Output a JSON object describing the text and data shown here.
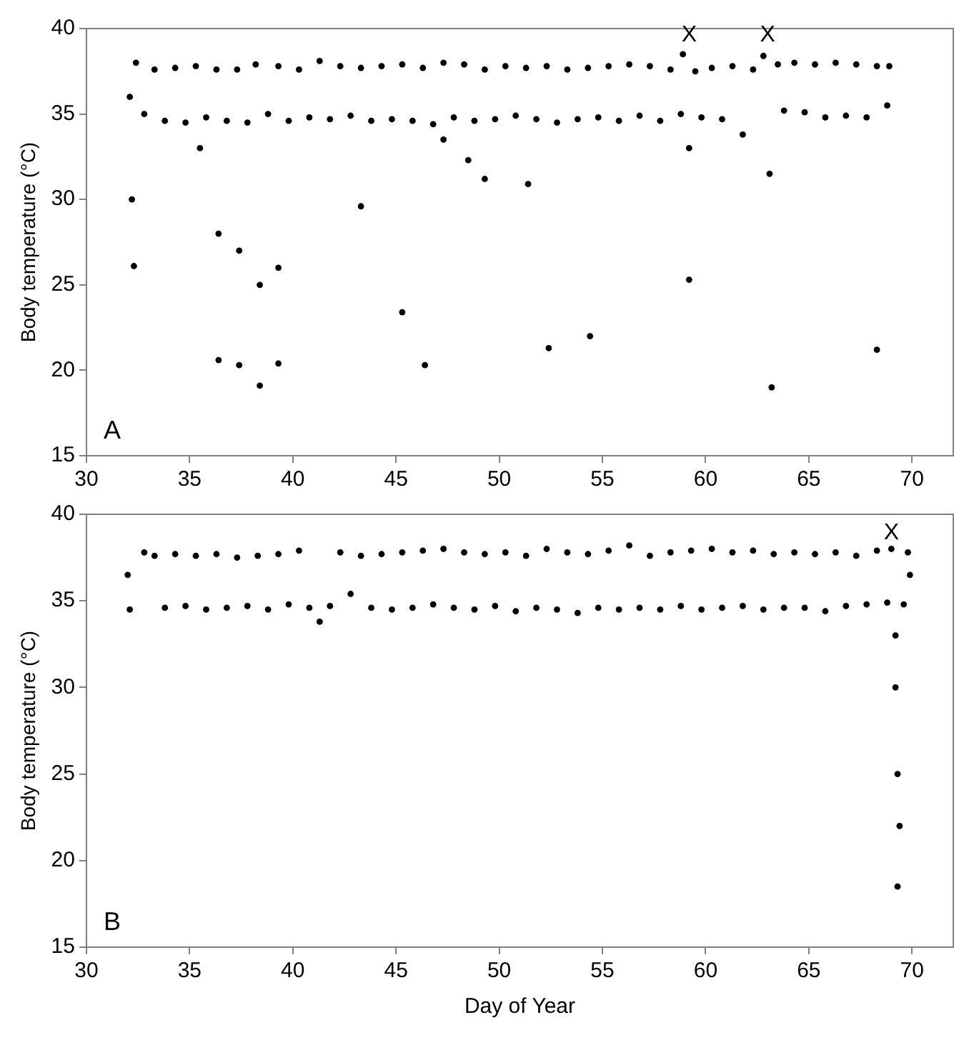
{
  "chart_data": [
    {
      "type": "scatter",
      "ylabel": "Body temperature (°C)",
      "marker": "circle",
      "grid": false,
      "legend": false,
      "xlim": [
        30,
        72
      ],
      "xticks": [
        30,
        35,
        40,
        45,
        50,
        55,
        60,
        65,
        70
      ],
      "ylim": [
        15,
        40
      ],
      "yticks": [
        15,
        20,
        25,
        30,
        35,
        40
      ],
      "annotations": [
        "A",
        {
          "text": "X",
          "x": 59.2,
          "y": 38.7
        },
        {
          "text": "X",
          "x": 63.0,
          "y": 38.7
        }
      ],
      "series": [
        {
          "color": "#000000",
          "x": [
            32.1,
            32.2,
            32.3,
            32.4,
            32.8,
            33.3,
            33.8,
            34.3,
            34.8,
            35.3,
            35.5,
            35.8,
            36.3,
            36.4,
            36.4,
            36.8,
            37.3,
            37.4,
            37.4,
            37.8,
            38.2,
            38.4,
            38.4,
            38.8,
            39.3,
            39.3,
            39.3,
            39.8,
            40.3,
            40.8,
            41.3,
            41.8,
            42.3,
            42.8,
            43.3,
            43.3,
            43.8,
            44.3,
            44.8,
            45.3,
            45.3,
            45.8,
            46.3,
            46.4,
            46.8,
            47.3,
            47.3,
            47.8,
            48.3,
            48.5,
            48.8,
            49.3,
            49.3,
            49.8,
            50.3,
            50.8,
            51.3,
            51.4,
            51.8,
            52.3,
            52.4,
            52.8,
            53.3,
            53.8,
            54.3,
            54.4,
            54.8,
            55.3,
            55.8,
            56.3,
            56.8,
            57.3,
            57.8,
            58.3,
            58.8,
            58.9,
            59.2,
            59.2,
            59.5,
            59.8,
            60.3,
            60.8,
            61.3,
            61.8,
            62.3,
            62.8,
            63.1,
            63.2,
            63.5,
            63.8,
            64.3,
            64.8,
            65.3,
            65.8,
            66.3,
            66.8,
            67.3,
            67.8,
            68.3,
            68.3,
            68.8,
            68.9
          ],
          "values": [
            36,
            30,
            26.1,
            38.0,
            35.0,
            37.6,
            34.6,
            37.7,
            34.5,
            37.8,
            33.0,
            34.8,
            37.6,
            28,
            20.6,
            34.6,
            37.6,
            27,
            20.3,
            34.5,
            37.9,
            25,
            19.1,
            35,
            37.8,
            26,
            20.4,
            34.6,
            37.6,
            34.8,
            38.1,
            34.7,
            37.8,
            34.9,
            37.7,
            29.6,
            34.6,
            37.8,
            34.7,
            37.9,
            23.4,
            34.6,
            37.7,
            20.3,
            34.4,
            38.0,
            33.5,
            34.8,
            37.9,
            32.3,
            34.6,
            37.6,
            31.2,
            34.7,
            37.8,
            34.9,
            37.7,
            30.9,
            34.7,
            37.8,
            21.3,
            34.5,
            37.6,
            34.7,
            37.7,
            22.0,
            34.8,
            37.8,
            34.6,
            37.9,
            34.9,
            37.8,
            34.6,
            37.6,
            35.0,
            38.5,
            33,
            25.3,
            37.5,
            34.8,
            37.7,
            34.7,
            37.8,
            33.8,
            37.6,
            38.4,
            31.5,
            19.0,
            37.9,
            35.2,
            38.0,
            35.1,
            37.9,
            34.8,
            38.0,
            34.9,
            37.9,
            34.8,
            37.8,
            21.2,
            35.5,
            37.8
          ]
        }
      ]
    },
    {
      "type": "scatter",
      "xlabel": "Day of Year",
      "ylabel": "Body temperature (°C)",
      "marker": "circle",
      "grid": false,
      "legend": false,
      "xlim": [
        30,
        72
      ],
      "xticks": [
        30,
        35,
        40,
        45,
        50,
        55,
        60,
        65,
        70
      ],
      "ylim": [
        15,
        40
      ],
      "yticks": [
        15,
        20,
        25,
        30,
        35,
        40
      ],
      "annotations": [
        "B",
        {
          "text": "X",
          "x": 69.0,
          "y": 38.0
        }
      ],
      "series": [
        {
          "color": "#000000",
          "x": [
            32.0,
            32.1,
            32.8,
            33.3,
            33.8,
            34.3,
            34.8,
            35.3,
            35.8,
            36.3,
            36.8,
            37.3,
            37.8,
            38.3,
            38.8,
            39.3,
            39.8,
            40.3,
            40.8,
            41.3,
            41.8,
            42.3,
            42.8,
            43.3,
            43.8,
            44.3,
            44.8,
            45.3,
            45.8,
            46.3,
            46.8,
            47.3,
            47.8,
            48.3,
            48.8,
            49.3,
            49.8,
            50.3,
            50.8,
            51.3,
            51.8,
            52.3,
            52.8,
            53.3,
            53.8,
            54.3,
            54.8,
            55.3,
            55.8,
            56.3,
            56.8,
            57.3,
            57.8,
            58.3,
            58.8,
            59.3,
            59.8,
            60.3,
            60.8,
            61.3,
            61.8,
            62.3,
            62.8,
            63.3,
            63.8,
            64.3,
            64.8,
            65.3,
            65.8,
            66.3,
            66.8,
            67.3,
            67.8,
            68.3,
            68.8,
            69.0,
            69.2,
            69.2,
            69.3,
            69.3,
            69.4,
            69.6,
            69.8,
            69.9
          ],
          "values": [
            36.5,
            34.5,
            37.8,
            37.6,
            34.6,
            37.7,
            34.7,
            37.6,
            34.5,
            37.7,
            34.6,
            37.5,
            34.7,
            37.6,
            34.5,
            37.7,
            34.8,
            37.9,
            34.6,
            33.8,
            34.7,
            37.8,
            35.4,
            37.6,
            34.6,
            37.7,
            34.5,
            37.8,
            34.6,
            37.9,
            34.8,
            38.0,
            34.6,
            37.8,
            34.5,
            37.7,
            34.7,
            37.8,
            34.4,
            37.6,
            34.6,
            38.0,
            34.5,
            37.8,
            34.3,
            37.7,
            34.6,
            37.9,
            34.5,
            38.2,
            34.6,
            37.6,
            34.5,
            37.8,
            34.7,
            37.9,
            34.5,
            38.0,
            34.6,
            37.8,
            34.7,
            37.9,
            34.5,
            37.7,
            34.6,
            37.8,
            34.6,
            37.7,
            34.4,
            37.8,
            34.7,
            37.6,
            34.8,
            37.9,
            34.9,
            38.0,
            33,
            30,
            25,
            18.5,
            22,
            34.8,
            37.8,
            36.5
          ]
        }
      ]
    }
  ]
}
